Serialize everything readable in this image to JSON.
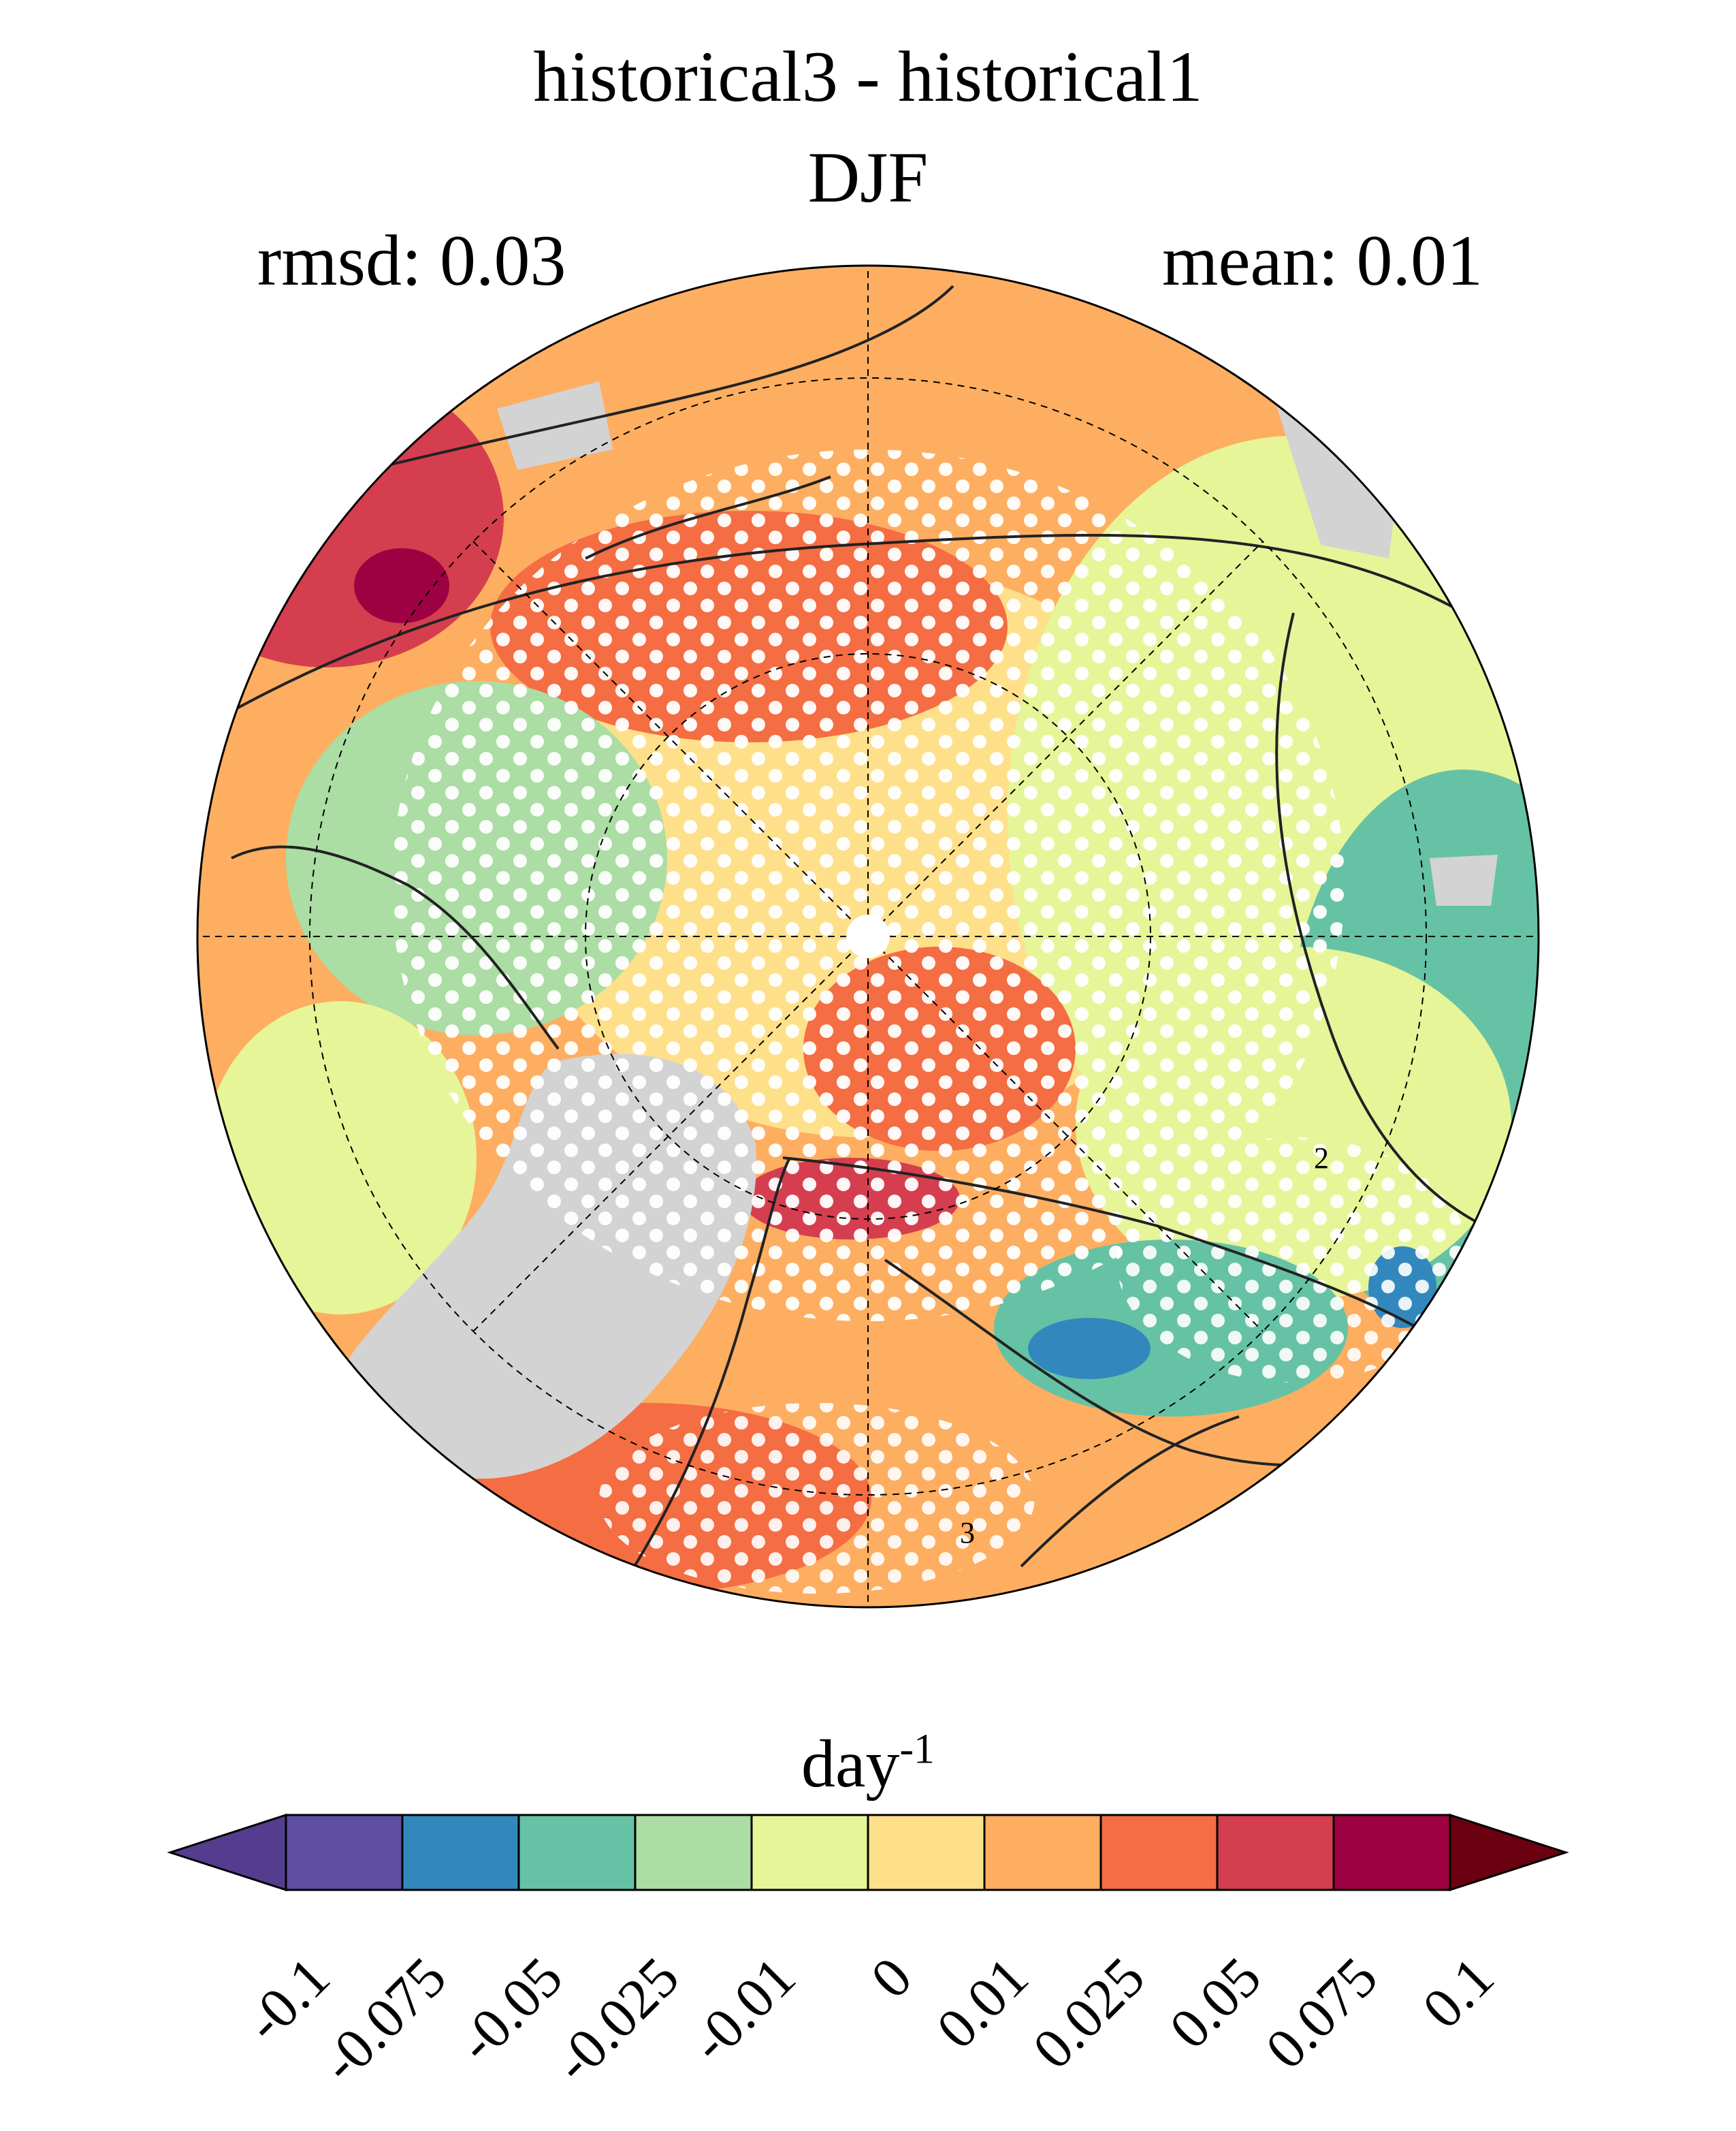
{
  "title": "historical3 - historical1",
  "subtitle": "DJF",
  "rmsd_label": "rmsd: 0.03",
  "mean_label": "mean: 0.01",
  "colorbar": {
    "units_base": "day",
    "units_exp": "-1",
    "ticks": [
      "-0.1",
      "-0.075",
      "-0.05",
      "-0.025",
      "-0.01",
      "0",
      "0.01",
      "0.025",
      "0.05",
      "0.075",
      "0.1"
    ],
    "colors": [
      "#5e4fa2",
      "#3288bd",
      "#66c2a5",
      "#abdda4",
      "#e6f598",
      "#fee08b",
      "#fdae61",
      "#f46d43",
      "#d53e4f",
      "#9e0142"
    ],
    "under_color": "#543d8e",
    "over_color": "#6b0010"
  },
  "map": {
    "projection": "north-polar-stereographic",
    "land_mask_color": "#d3d3d3",
    "background_color": "#fdae61",
    "stippling": "white dots mark significant differences",
    "contour_labels": [
      "2",
      "3"
    ]
  }
}
